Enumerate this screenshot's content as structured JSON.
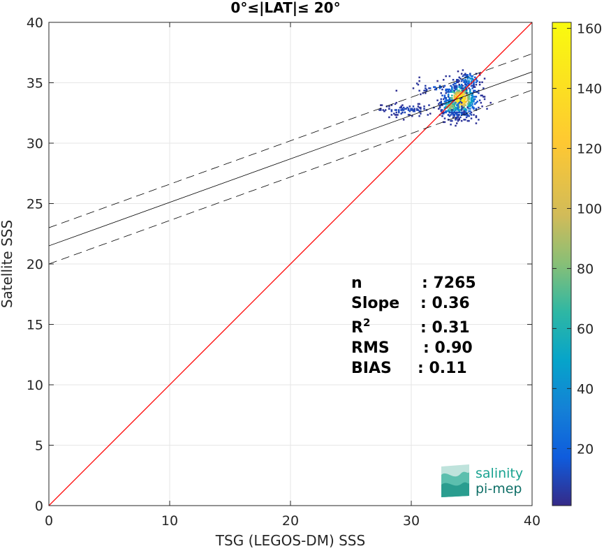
{
  "chart_data": {
    "type": "scatter",
    "title": "0°≤|LAT|≤ 20°",
    "xlabel": "TSG (LEGOS-DM) SSS",
    "ylabel": "Satellite SSS",
    "xlim": [
      0,
      40
    ],
    "ylim": [
      0,
      40
    ],
    "xticks": [
      0,
      10,
      20,
      30,
      40
    ],
    "yticks": [
      0,
      5,
      10,
      15,
      20,
      25,
      30,
      35,
      40
    ],
    "grid": true,
    "reference_line": {
      "from": [
        0,
        0
      ],
      "to": [
        40,
        40
      ],
      "color": "#ff0000"
    },
    "fit_line": {
      "slope": 0.36,
      "intercept": 21.5,
      "color": "#000000"
    },
    "fit_band": {
      "offset": 1.5,
      "style": "dashed"
    },
    "density_colorbar": {
      "min": 1,
      "max": 162,
      "ticks": [
        20,
        40,
        60,
        80,
        100,
        120,
        140,
        160
      ]
    },
    "density_clusters": [
      {
        "x": 34,
        "y": 33.6,
        "sx": 0.75,
        "sy": 0.75,
        "peak": 160,
        "n": 520
      },
      {
        "x": 33.2,
        "y": 33.0,
        "sx": 0.5,
        "sy": 0.4,
        "peak": 90,
        "n": 140
      },
      {
        "x": 29.5,
        "y": 32.7,
        "sx": 1.3,
        "sy": 0.25,
        "peak": 8,
        "n": 90
      },
      {
        "x": 32.5,
        "y": 34.5,
        "sx": 1.2,
        "sy": 0.25,
        "peak": 15,
        "n": 60
      },
      {
        "x": 34.8,
        "y": 35.2,
        "sx": 0.5,
        "sy": 0.3,
        "peak": 40,
        "n": 70
      },
      {
        "x": 33.8,
        "y": 32.3,
        "sx": 0.9,
        "sy": 0.2,
        "peak": 12,
        "n": 40
      }
    ],
    "stats": [
      {
        "label": "n",
        "value": ": 7265"
      },
      {
        "label": "Slope",
        "value": ": 0.36"
      },
      {
        "label": "R",
        "sup": "2",
        "value": ": 0.31"
      },
      {
        "label": "RMS",
        "value": ": 0.90"
      },
      {
        "label": "BIAS",
        "value": ": 0.11"
      }
    ]
  },
  "logo": {
    "line1": "salinity",
    "line2": "pi-mep"
  }
}
